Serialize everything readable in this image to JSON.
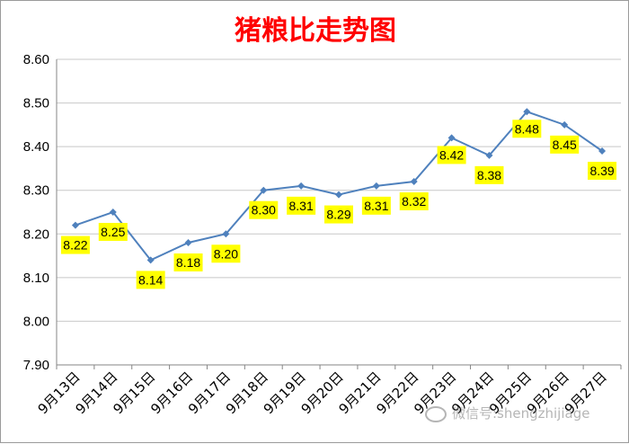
{
  "chart_data": {
    "type": "line",
    "title": "猪粮比走势图",
    "xlabel": "",
    "ylabel": "",
    "categories": [
      "9月13日",
      "9月14日",
      "9月15日",
      "9月16日",
      "9月17日",
      "9月18日",
      "9月19日",
      "9月20日",
      "9月21日",
      "9月22日",
      "9月23日",
      "9月24日",
      "9月25日",
      "9月26日",
      "9月27日"
    ],
    "series": [
      {
        "values": [
          8.22,
          8.25,
          8.14,
          8.18,
          8.2,
          8.3,
          8.31,
          8.29,
          8.31,
          8.32,
          8.42,
          8.38,
          8.48,
          8.45,
          8.39
        ],
        "labels": [
          "8.22",
          "8.25",
          "8.14",
          "8.18",
          "8.20",
          "8.30",
          "8.31",
          "8.29",
          "8.31",
          "8.32",
          "8.42",
          "8.38",
          "8.48",
          "8.45",
          "8.39"
        ],
        "color": "#4f81bd"
      }
    ],
    "ylim": [
      7.9,
      8.6
    ],
    "yticks": [
      "7.90",
      "8.00",
      "8.10",
      "8.20",
      "8.30",
      "8.40",
      "8.50",
      "8.60"
    ],
    "grid": true,
    "legend": "none",
    "label_bg_color": "#ffff00",
    "title_color": "#ff0000"
  },
  "watermark": {
    "text": "微信号:shengzhijiage",
    "icon": "wechat-icon"
  }
}
